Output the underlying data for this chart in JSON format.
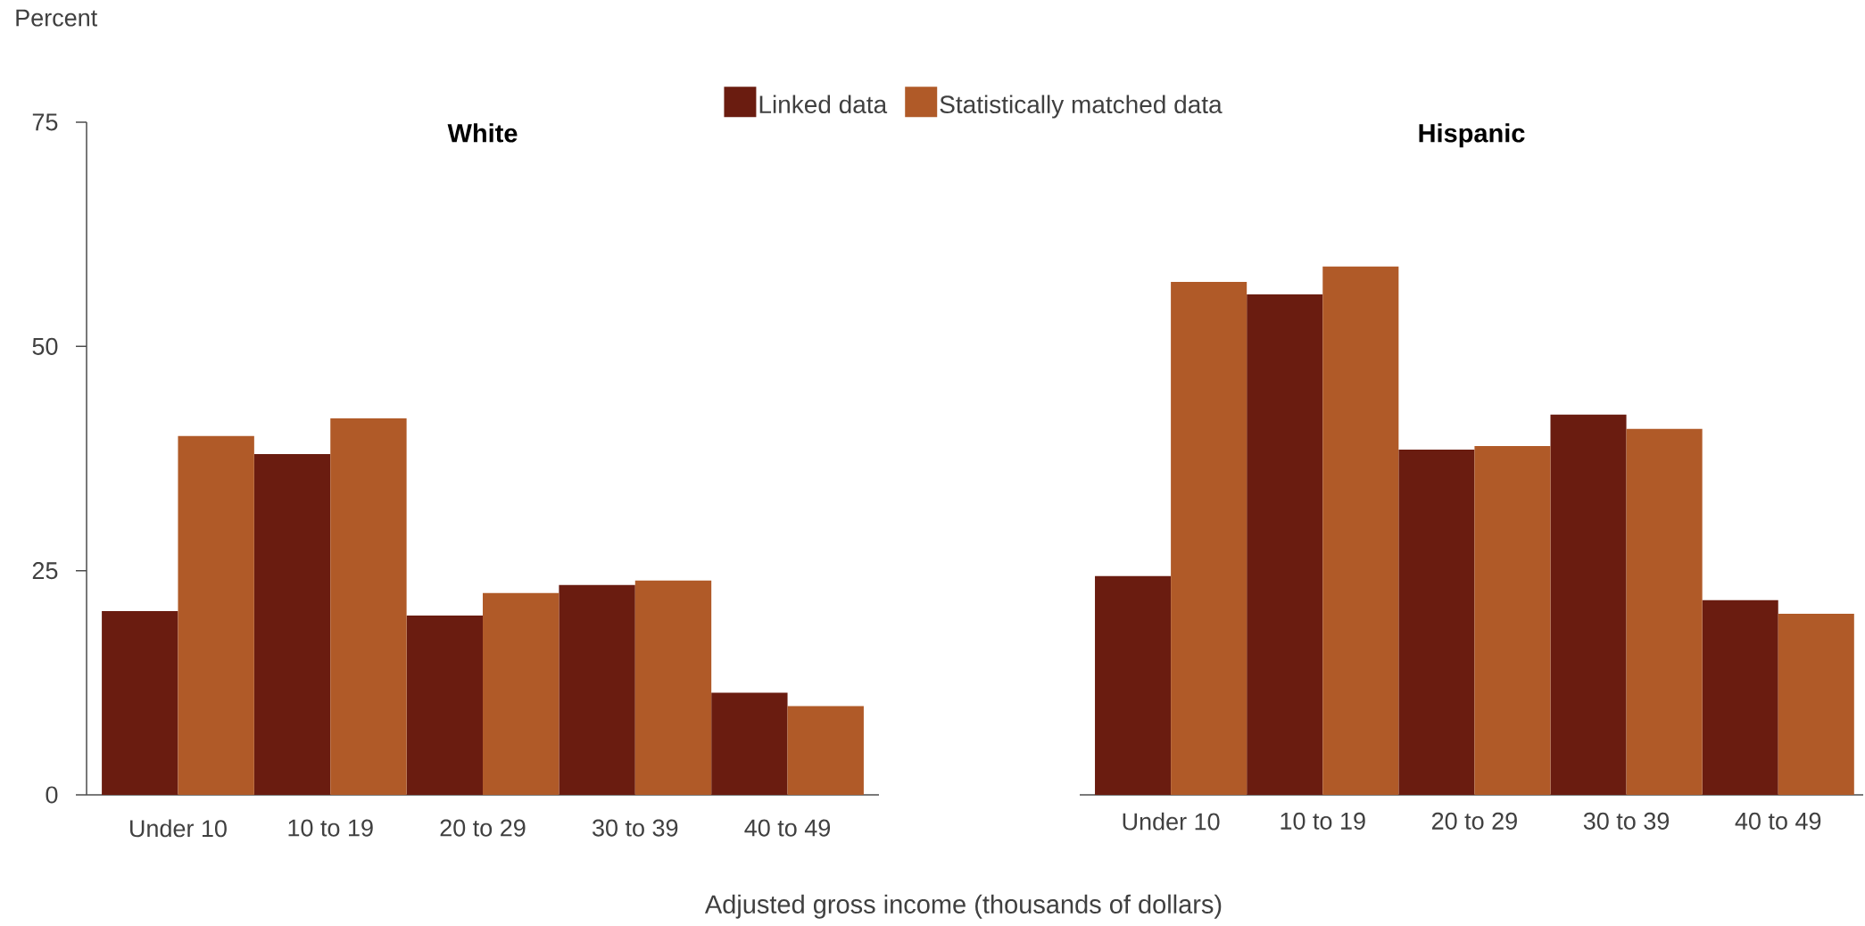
{
  "chart_data": [
    {
      "type": "bar",
      "title": "White",
      "ylabel": "Percent",
      "xlabel": "Adjusted gross income (thousands of dollars)",
      "categories": [
        "Under 10",
        "10 to 19",
        "20 to 29",
        "30 to 39",
        "40 to 49"
      ],
      "series": [
        {
          "name": "Linked data",
          "color": "#6a1c10",
          "values": [
            20.5,
            38.0,
            20.0,
            23.4,
            11.4
          ]
        },
        {
          "name": "Statistically matched data",
          "color": "#b05a28",
          "values": [
            40.0,
            42.0,
            22.5,
            23.9,
            9.9
          ]
        }
      ],
      "ylim": [
        0,
        75
      ],
      "yticks": [
        0,
        25,
        50,
        75
      ],
      "legend": "top"
    },
    {
      "type": "bar",
      "title": "Hispanic",
      "categories": [
        "Under 10",
        "10 to 19",
        "20 to 29",
        "30 to 39",
        "40 to 49"
      ],
      "series": [
        {
          "color": "#6a1c10",
          "values": [
            24.4,
            55.8,
            38.5,
            42.4,
            21.7
          ]
        },
        {
          "color": "#b05a28",
          "values": [
            57.2,
            58.9,
            38.9,
            40.8,
            20.2
          ]
        }
      ],
      "ylim": [
        0,
        75
      ],
      "yticks": [
        0,
        25,
        50,
        75
      ],
      "tick_labels": "x"
    }
  ]
}
